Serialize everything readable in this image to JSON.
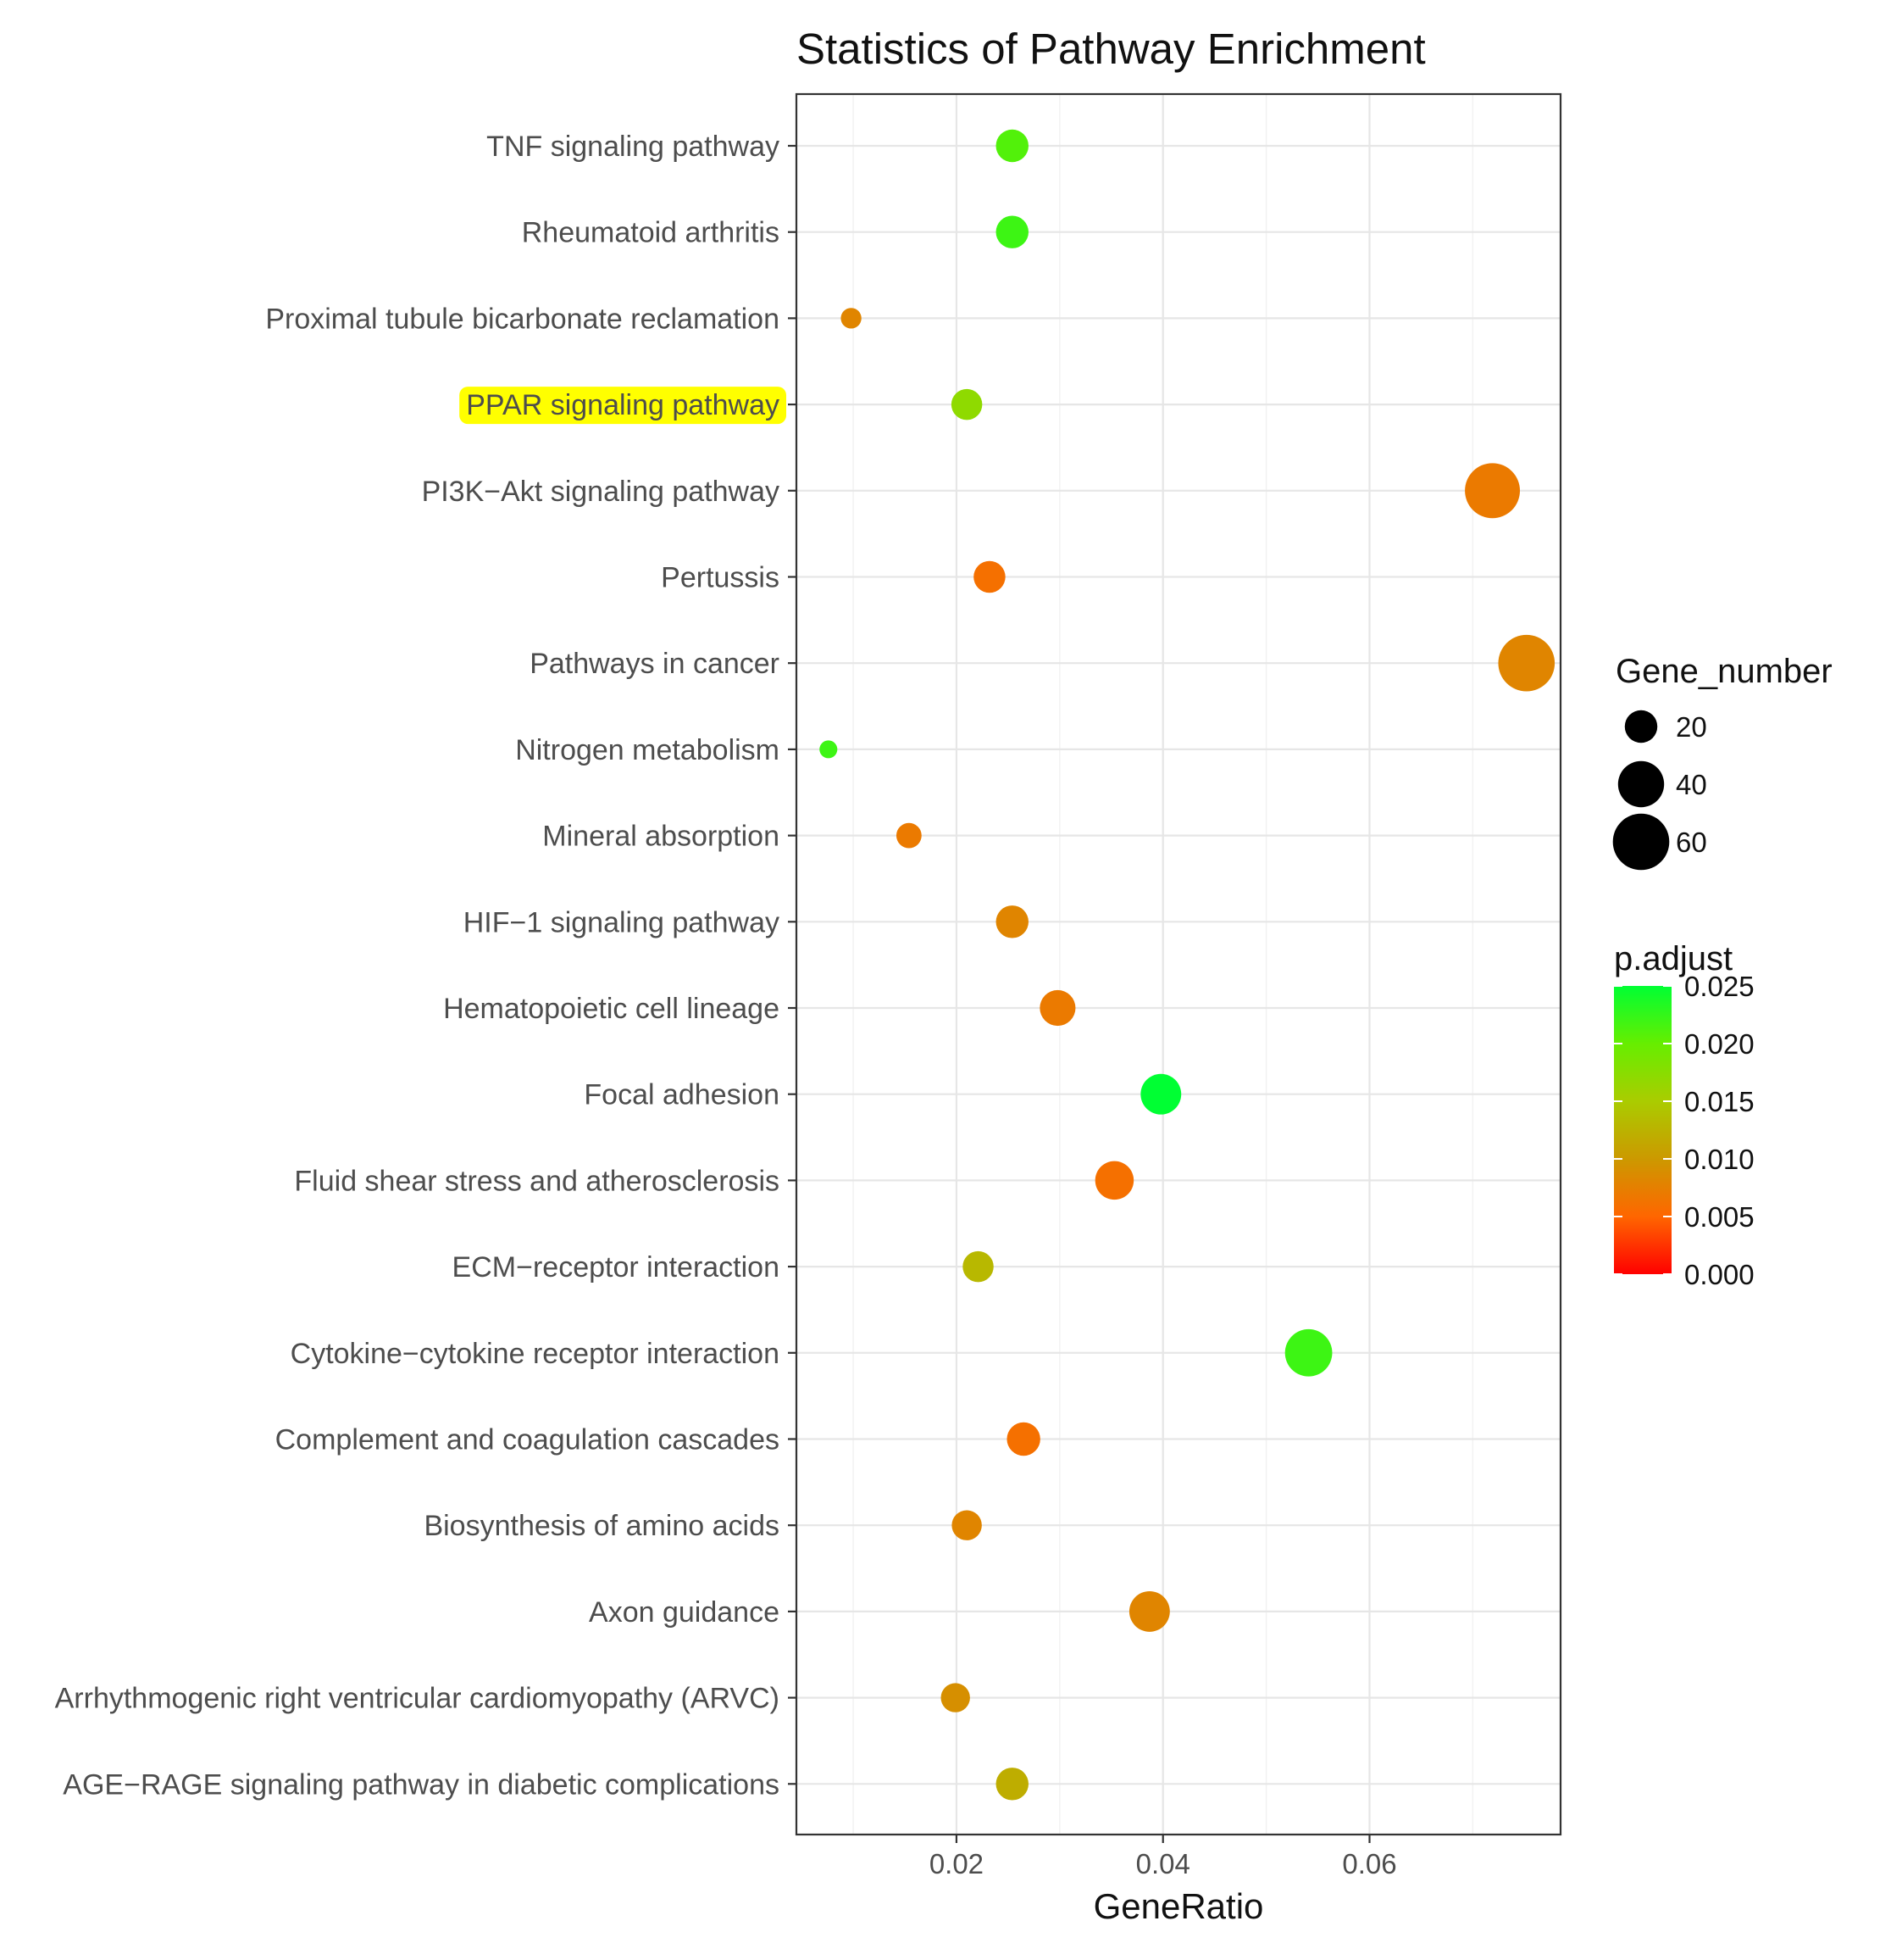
{
  "chart_data": {
    "type": "scatter",
    "title": "Statistics of Pathway Enrichment",
    "xlabel": "GeneRatio",
    "ylabel": "",
    "xlim": [
      0.0045,
      0.0785
    ],
    "xticks": [
      0.02,
      0.04,
      0.06
    ],
    "xtick_labels": [
      "0.02",
      "0.04",
      "0.06"
    ],
    "grid": true,
    "highlighted_category": "PPAR signaling pathway",
    "highlight_color": "#ffff00",
    "points": [
      {
        "pathway": "TNF signaling pathway",
        "gene_ratio": 0.0254,
        "gene_number": 20,
        "p_adjust": 0.021
      },
      {
        "pathway": "Rheumatoid arthritis",
        "gene_ratio": 0.0254,
        "gene_number": 20,
        "p_adjust": 0.022
      },
      {
        "pathway": "Proximal tubule bicarbonate reclamation",
        "gene_ratio": 0.0098,
        "gene_number": 8,
        "p_adjust": 0.008
      },
      {
        "pathway": "PPAR signaling pathway",
        "gene_ratio": 0.021,
        "gene_number": 18,
        "p_adjust": 0.017
      },
      {
        "pathway": "PI3K−Akt signaling pathway",
        "gene_ratio": 0.0719,
        "gene_number": 57,
        "p_adjust": 0.007
      },
      {
        "pathway": "Pertussis",
        "gene_ratio": 0.0232,
        "gene_number": 19,
        "p_adjust": 0.006
      },
      {
        "pathway": "Pathways in cancer",
        "gene_ratio": 0.0752,
        "gene_number": 60,
        "p_adjust": 0.008
      },
      {
        "pathway": "Nitrogen metabolism",
        "gene_ratio": 0.0076,
        "gene_number": 6,
        "p_adjust": 0.022
      },
      {
        "pathway": "Mineral absorption",
        "gene_ratio": 0.0154,
        "gene_number": 12,
        "p_adjust": 0.007
      },
      {
        "pathway": "HIF−1 signaling pathway",
        "gene_ratio": 0.0254,
        "gene_number": 20,
        "p_adjust": 0.008
      },
      {
        "pathway": "Hematopoietic cell lineage",
        "gene_ratio": 0.0298,
        "gene_number": 24,
        "p_adjust": 0.007
      },
      {
        "pathway": "Focal adhesion",
        "gene_ratio": 0.0398,
        "gene_number": 31,
        "p_adjust": 0.025
      },
      {
        "pathway": "Fluid shear stress and atherosclerosis",
        "gene_ratio": 0.0353,
        "gene_number": 28,
        "p_adjust": 0.006
      },
      {
        "pathway": "ECM−receptor interaction",
        "gene_ratio": 0.0221,
        "gene_number": 18,
        "p_adjust": 0.013
      },
      {
        "pathway": "Cytokine−cytokine receptor interaction",
        "gene_ratio": 0.0541,
        "gene_number": 42,
        "p_adjust": 0.022
      },
      {
        "pathway": "Complement and coagulation cascades",
        "gene_ratio": 0.0265,
        "gene_number": 21,
        "p_adjust": 0.006
      },
      {
        "pathway": "Biosynthesis of amino acids",
        "gene_ratio": 0.021,
        "gene_number": 17,
        "p_adjust": 0.008
      },
      {
        "pathway": "Axon guidance",
        "gene_ratio": 0.0387,
        "gene_number": 31,
        "p_adjust": 0.008
      },
      {
        "pathway": "Arrhythmogenic right ventricular cardiomyopathy (ARVC)",
        "gene_ratio": 0.0199,
        "gene_number": 16,
        "p_adjust": 0.009
      },
      {
        "pathway": "AGE−RAGE signaling pathway in diabetic complications",
        "gene_ratio": 0.0254,
        "gene_number": 20,
        "p_adjust": 0.012
      }
    ],
    "legends": {
      "size": {
        "title": "Gene_number",
        "values": [
          20,
          40,
          60
        ],
        "labels": [
          "20",
          "40",
          "60"
        ]
      },
      "color": {
        "title": "p.adjust",
        "range": [
          0.0,
          0.025
        ],
        "ticks": [
          0.025,
          0.02,
          0.015,
          0.01,
          0.005,
          0.0
        ],
        "tick_labels": [
          "0.025",
          "0.020",
          "0.015",
          "0.010",
          "0.005",
          "0.000"
        ],
        "gradient": [
          "#ff0000",
          "#ff6600",
          "#cc9900",
          "#aacc00",
          "#66ee00",
          "#00ff33"
        ]
      }
    }
  }
}
